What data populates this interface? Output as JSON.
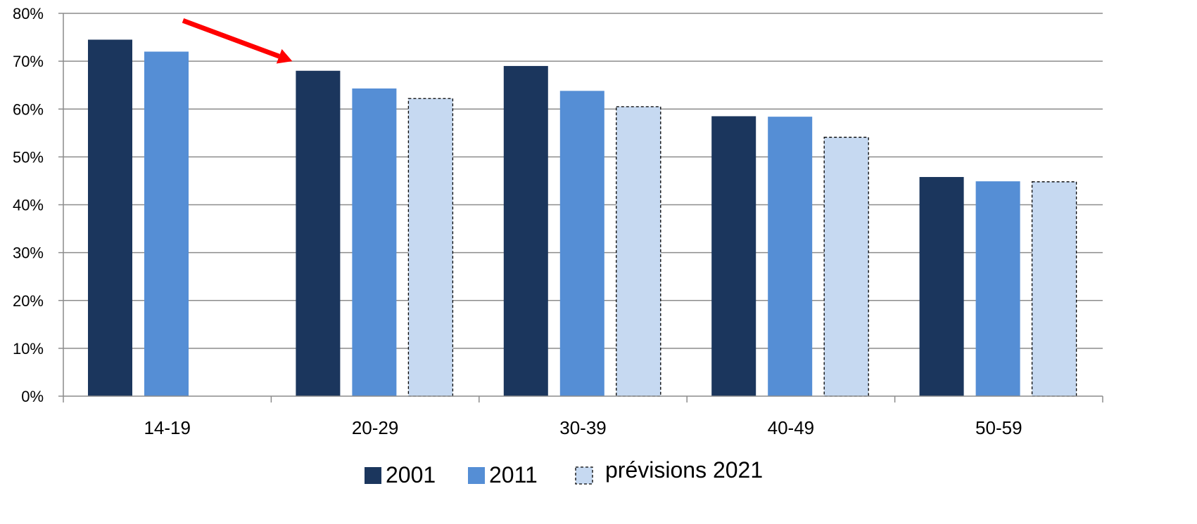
{
  "chart_data": {
    "type": "bar",
    "categories": [
      "14-19",
      "20-29",
      "30-39",
      "40-49",
      "50-59"
    ],
    "series": [
      {
        "name": "2001",
        "values": [
          74.5,
          68.0,
          69.0,
          58.5,
          45.8
        ],
        "color": "#1b365d",
        "style": "solid"
      },
      {
        "name": "2011",
        "values": [
          72.0,
          64.3,
          63.8,
          58.4,
          44.9
        ],
        "color": "#558ed5",
        "style": "solid"
      },
      {
        "name": "prévisions 2021",
        "values": [
          null,
          62.2,
          60.5,
          54.1,
          44.8
        ],
        "color": "#c6d9f1",
        "style": "dashed"
      }
    ],
    "y_ticks": [
      "0%",
      "10%",
      "20%",
      "30%",
      "40%",
      "50%",
      "60%",
      "70%",
      "80%"
    ],
    "ylim": [
      0,
      80
    ],
    "grid": true,
    "legend_position": "bottom",
    "annotation": {
      "type": "arrow",
      "color": "#ff0000",
      "from": [
        "14-19",
        78.5
      ],
      "to": [
        "20-29",
        70.0
      ]
    }
  }
}
